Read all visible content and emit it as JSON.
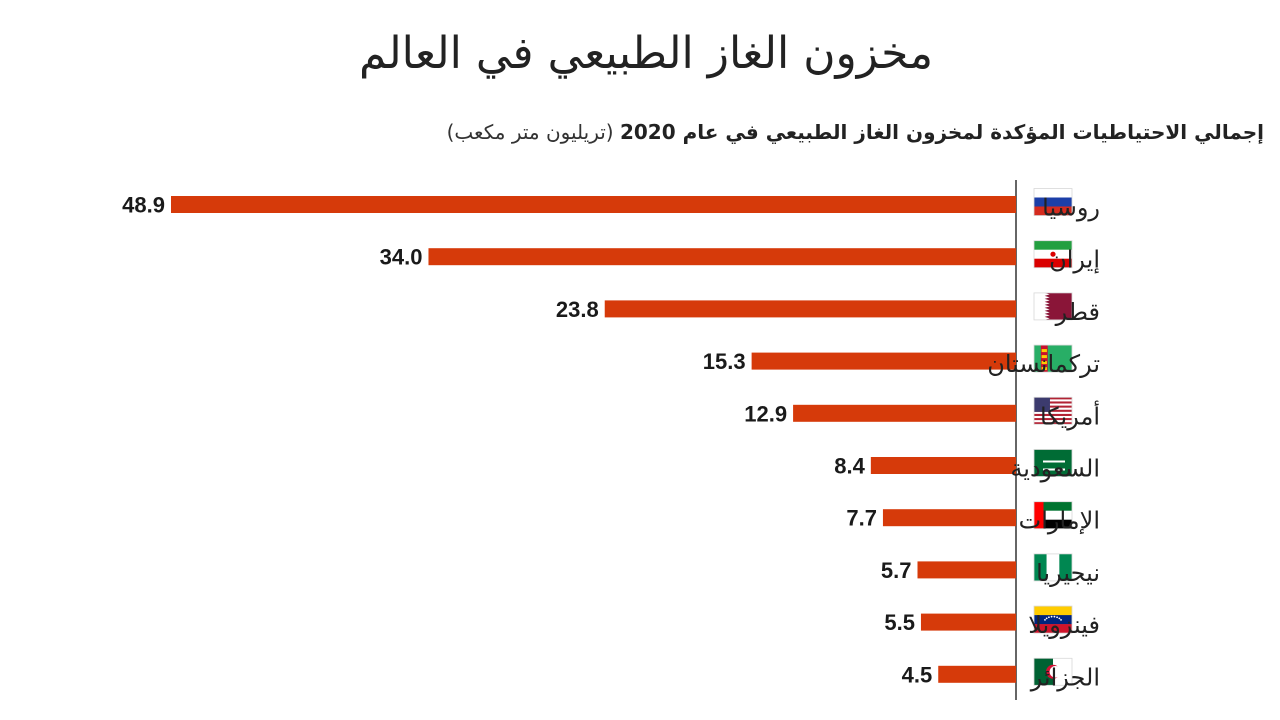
{
  "title": "مخزون الغاز الطبيعي في العالم",
  "subtitle": "إجمالي الاحتياطيات المؤكدة لمخزون الغاز الطبيعي في عام 2020",
  "subtitle_unit": "(تريليون متر مكعب)",
  "colors": {
    "bar": "#d63a0a",
    "axis": "#333333"
  },
  "chart_data": {
    "type": "bar",
    "orientation": "horizontal",
    "title": "مخزون الغاز الطبيعي في العالم",
    "subtitle": "إجمالي الاحتياطيات المؤكدة لمخزون الغاز الطبيعي في عام 2020 (تريليون متر مكعب)",
    "categories": [
      "روسيا",
      "إيران",
      "قطر",
      "تركمانستان",
      "أمريكا",
      "السعودية",
      "الإمارات",
      "نيجيريا",
      "فينزويلا",
      "الجزائر"
    ],
    "values": [
      48.9,
      34.0,
      23.8,
      15.3,
      12.9,
      8.4,
      7.7,
      5.7,
      5.5,
      4.5
    ],
    "value_labels": [
      "48.9",
      "34.0",
      "23.8",
      "15.3",
      "12.9",
      "8.4",
      "7.7",
      "5.7",
      "5.5",
      "4.5"
    ],
    "flags": [
      "russia-flag-icon",
      "iran-flag-icon",
      "qatar-flag-icon",
      "turkmenistan-flag-icon",
      "usa-flag-icon",
      "saudi-arabia-flag-icon",
      "uae-flag-icon",
      "nigeria-flag-icon",
      "venezuela-flag-icon",
      "algeria-flag-icon"
    ],
    "xlim": [
      0,
      48.9
    ],
    "grid": false,
    "legend": "none"
  }
}
